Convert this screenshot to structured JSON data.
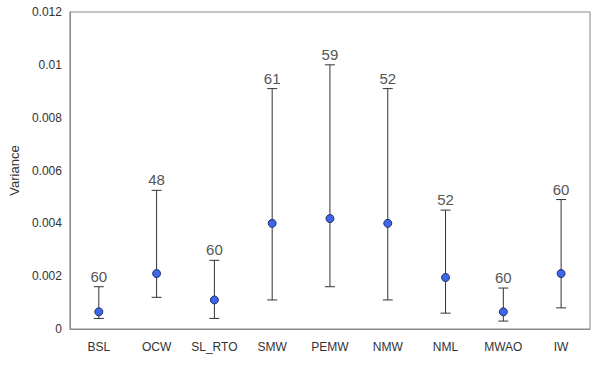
{
  "chart_data": {
    "type": "scatter",
    "y_label": "Variance",
    "categories": [
      "BSL",
      "OCW",
      "SL_RTO",
      "SMW",
      "PEMW",
      "NMW",
      "NML",
      "MWAO",
      "IW"
    ],
    "values": [
      0.00065,
      0.0021,
      0.0011,
      0.004,
      0.00418,
      0.004,
      0.00195,
      0.00065,
      0.0021
    ],
    "error_low": [
      0.0004,
      0.0012,
      0.0004,
      0.0011,
      0.0016,
      0.0011,
      0.0006,
      0.0003,
      0.0008
    ],
    "error_high": [
      0.0016,
      0.00525,
      0.0026,
      0.0091,
      0.01,
      0.0091,
      0.0045,
      0.00155,
      0.0049
    ],
    "counts": [
      60,
      48,
      60,
      61,
      59,
      52,
      52,
      60,
      60
    ],
    "color": "#3d66e8",
    "marker": "circle",
    "ylim": [
      0,
      0.012
    ],
    "yticks": [
      0,
      0.002,
      0.004,
      0.006,
      0.008,
      0.01,
      0.012
    ],
    "grid": false
  }
}
